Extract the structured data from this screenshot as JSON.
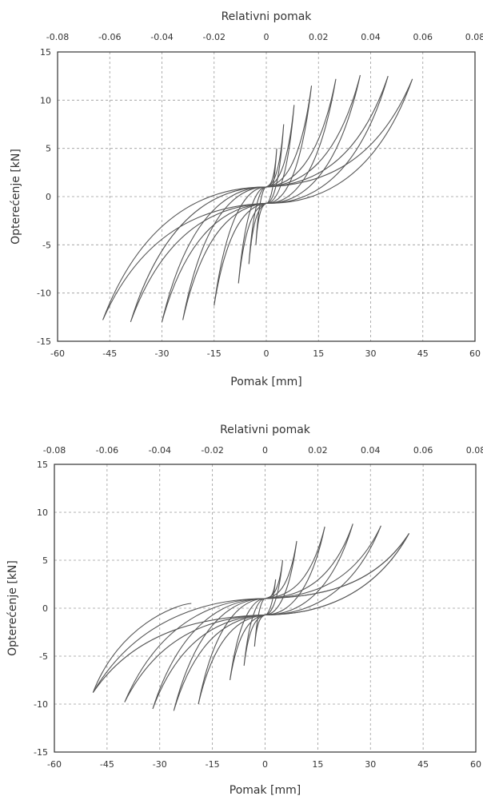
{
  "chart_data": [
    {
      "type": "line",
      "top_axis_label": "Relativni pomak",
      "top_ticks": [
        "-0.08",
        "-0.06",
        "-0.04",
        "-0.02",
        "0",
        "0.02",
        "0.04",
        "0.06",
        "0.08"
      ],
      "xlabel": "Pomak [mm]",
      "ylabel": "Opterećenje [kN]",
      "xlim": [
        -60,
        60
      ],
      "ylim": [
        -15,
        15
      ],
      "x_ticks": [
        -60,
        -45,
        -30,
        -15,
        0,
        15,
        30,
        45,
        60
      ],
      "y_ticks": [
        -15,
        -10,
        -5,
        0,
        5,
        10,
        15
      ],
      "grid": true,
      "cycles": [
        {
          "amp_pos": 3,
          "amp_neg": -3,
          "f_pos": 5.0,
          "f_neg": -5.0
        },
        {
          "amp_pos": 5,
          "amp_neg": -5,
          "f_pos": 7.5,
          "f_neg": -7.0
        },
        {
          "amp_pos": 8,
          "amp_neg": -8,
          "f_pos": 9.5,
          "f_neg": -9.0
        },
        {
          "amp_pos": 13,
          "amp_neg": -15,
          "f_pos": 11.5,
          "f_neg": -11.3
        },
        {
          "amp_pos": 20,
          "amp_neg": -24,
          "f_pos": 12.2,
          "f_neg": -12.8
        },
        {
          "amp_pos": 27,
          "amp_neg": -30,
          "f_pos": 12.6,
          "f_neg": -13.0
        },
        {
          "amp_pos": 35,
          "amp_neg": -39,
          "f_pos": 12.5,
          "f_neg": -13.0
        },
        {
          "amp_pos": 42,
          "amp_neg": -47,
          "f_pos": 12.2,
          "f_neg": -12.8
        }
      ]
    },
    {
      "type": "line",
      "top_axis_label": "Relativni pomak",
      "top_ticks": [
        "-0.08",
        "-0.06",
        "-0.04",
        "-0.02",
        "0",
        "0.02",
        "0.04",
        "0.06",
        "0.08"
      ],
      "xlabel": "Pomak [mm]",
      "ylabel": "Opterećenje [kN]",
      "xlim": [
        -60,
        60
      ],
      "ylim": [
        -15,
        15
      ],
      "x_ticks": [
        -60,
        -45,
        -30,
        -15,
        0,
        15,
        30,
        45,
        60
      ],
      "y_ticks": [
        -15,
        -10,
        -5,
        0,
        5,
        10,
        15
      ],
      "grid": true,
      "cycles": [
        {
          "amp_pos": 3,
          "amp_neg": -3,
          "f_pos": 3.0,
          "f_neg": -4.0
        },
        {
          "amp_pos": 5,
          "amp_neg": -6,
          "f_pos": 5.0,
          "f_neg": -6.0
        },
        {
          "amp_pos": 9,
          "amp_neg": -10,
          "f_pos": 7.0,
          "f_neg": -7.5
        },
        {
          "amp_pos": 17,
          "amp_neg": -19,
          "f_pos": 8.5,
          "f_neg": -10.0
        },
        {
          "amp_pos": 25,
          "amp_neg": -26,
          "f_pos": 8.8,
          "f_neg": -10.7
        },
        {
          "amp_pos": 33,
          "amp_neg": -32,
          "f_pos": 8.6,
          "f_neg": -10.5
        },
        {
          "amp_pos": 41,
          "amp_neg": -40,
          "f_pos": 7.8,
          "f_neg": -9.8
        },
        {
          "amp_pos": 41,
          "amp_neg": -49,
          "f_pos": 7.8,
          "f_neg": -8.8
        }
      ],
      "tail": {
        "x": -21,
        "y": 0.5
      }
    }
  ]
}
